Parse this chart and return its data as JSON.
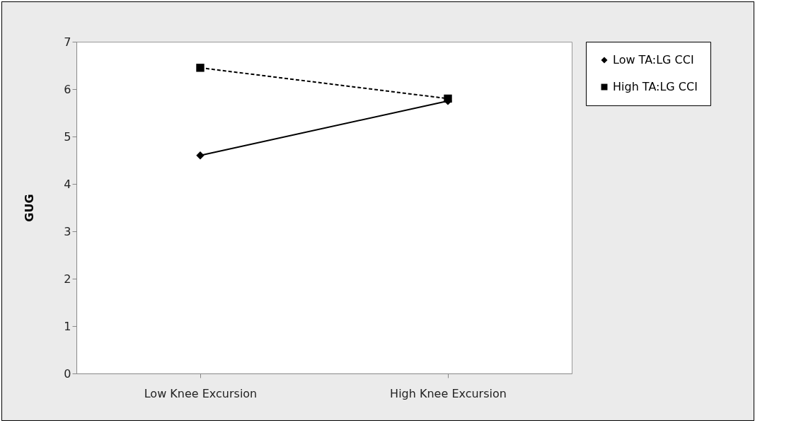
{
  "chart_data": {
    "type": "line",
    "ylabel": "GUG",
    "categories": [
      "Low Knee Excursion",
      "High Knee Excursion"
    ],
    "series": [
      {
        "name": "Low TA:LG CCI",
        "color": "#000000",
        "values": [
          4.6,
          5.75
        ],
        "marker": "diamond",
        "line_style": "solid"
      },
      {
        "name": "High TA:LG CCI",
        "color": "#000000",
        "values": [
          6.45,
          5.8
        ],
        "marker": "square",
        "line_style": "dashed"
      }
    ],
    "ylim": [
      0,
      7
    ],
    "yticks": [
      0,
      1,
      2,
      3,
      4,
      5,
      6,
      7
    ],
    "grid": false,
    "legend": "right"
  }
}
